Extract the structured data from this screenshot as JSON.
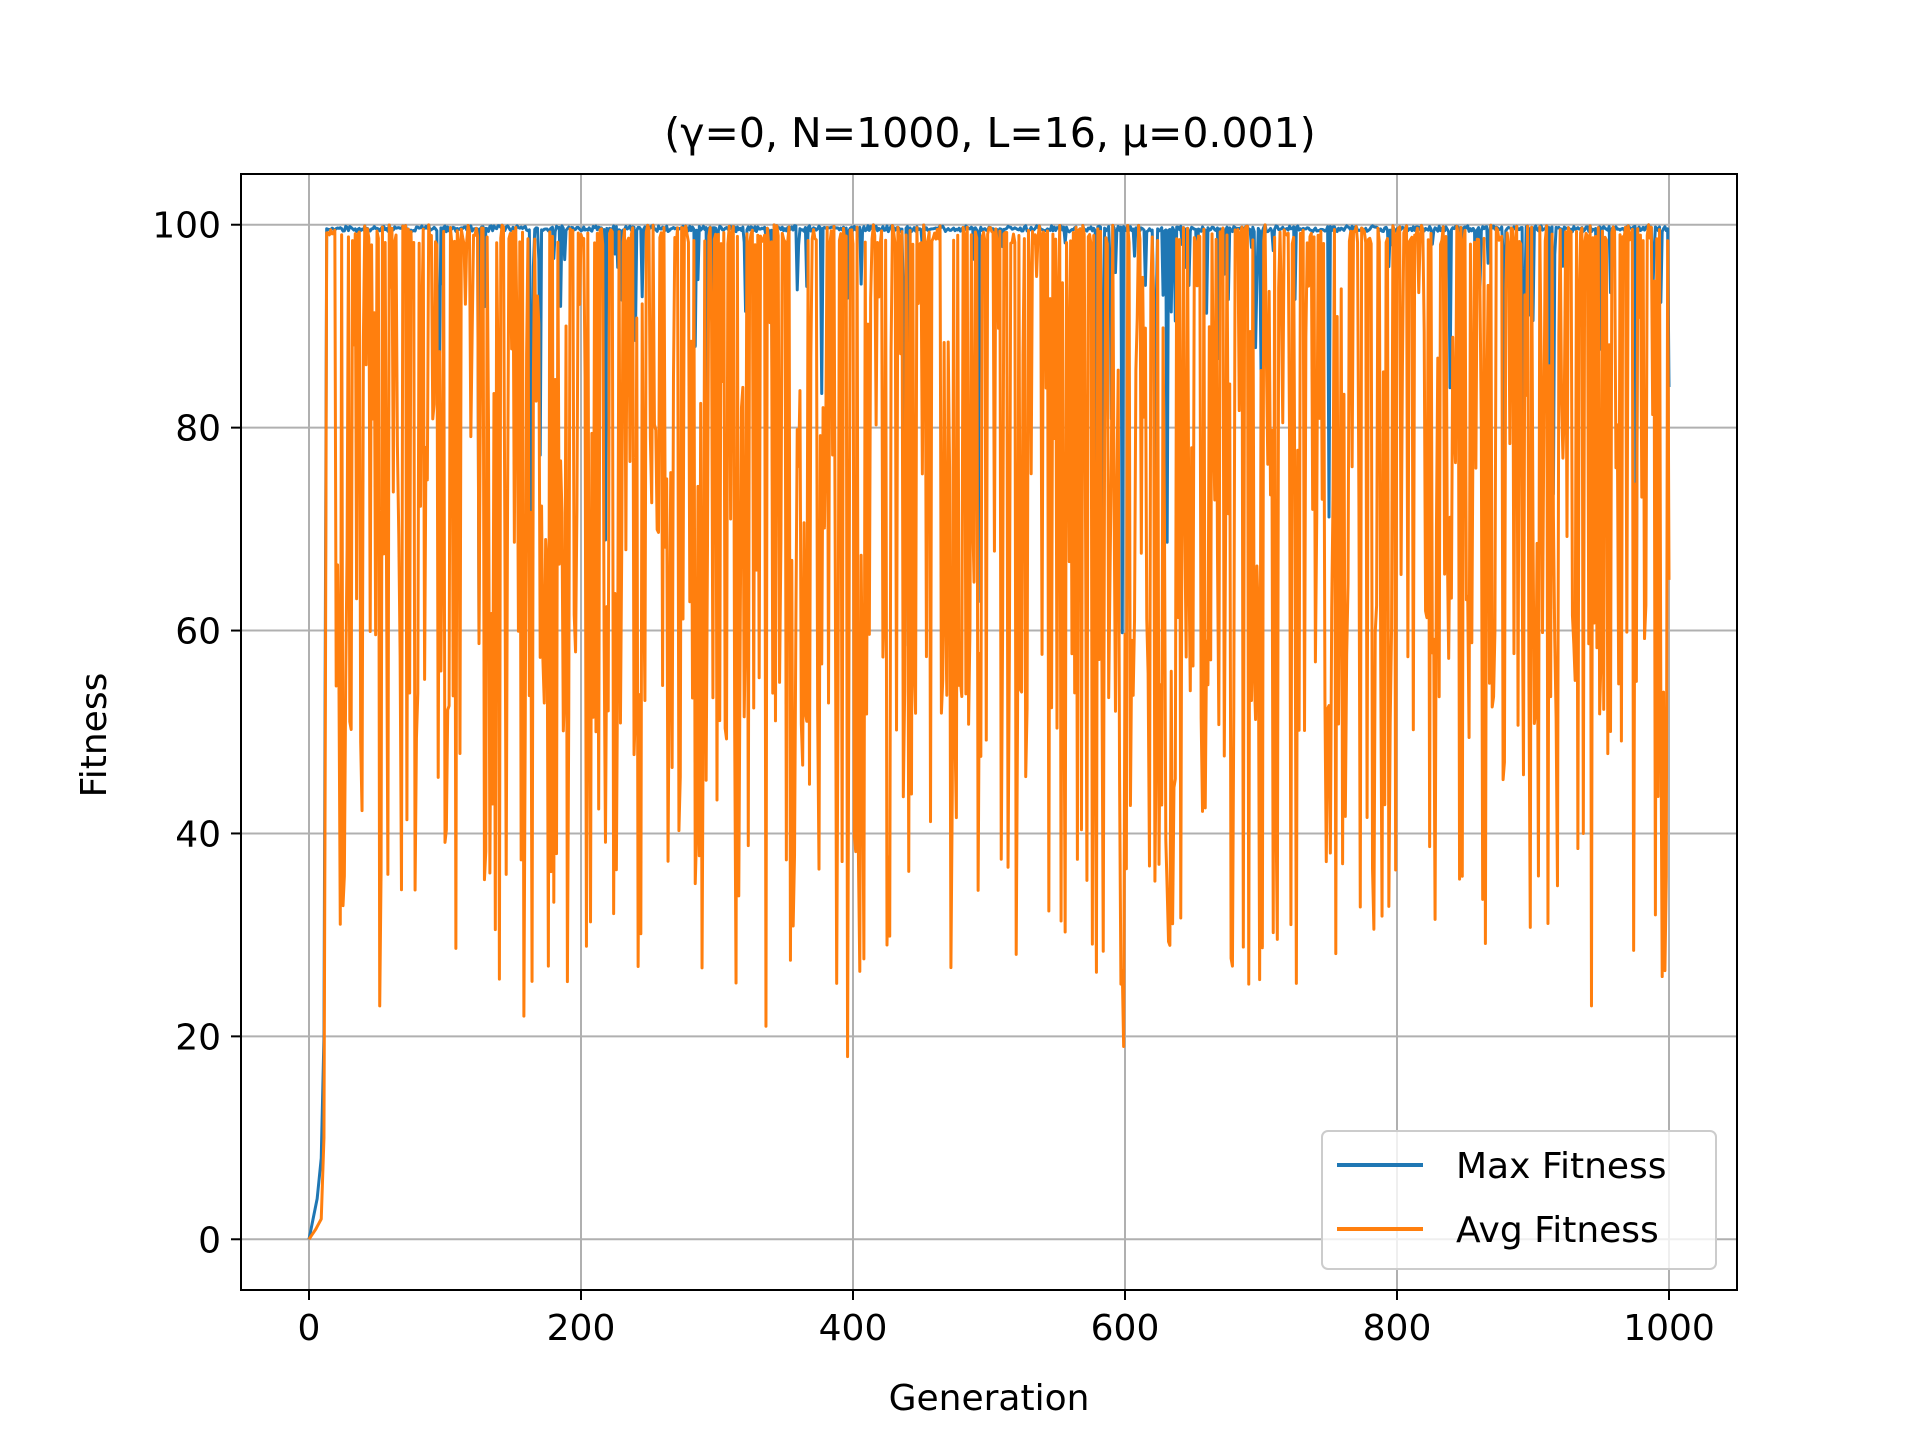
{
  "chart_data": {
    "type": "line",
    "title": "(γ=0, N=1000, L=16, μ=0.001)",
    "xlabel": "Generation",
    "ylabel": "Fitness",
    "xlim": [
      -50,
      1050
    ],
    "ylim": [
      -5,
      105
    ],
    "xticks": [
      0,
      200,
      400,
      600,
      800,
      1000
    ],
    "yticks": [
      0,
      20,
      40,
      60,
      80,
      100
    ],
    "xtick_labels": [
      "0",
      "200",
      "400",
      "600",
      "800",
      "1000"
    ],
    "ytick_labels": [
      "0",
      "20",
      "40",
      "60",
      "80",
      "100"
    ],
    "grid": true,
    "legend_position": "bottom-right",
    "generations": 1000,
    "series": [
      {
        "name": "Max Fitness",
        "color": "#1f77b4",
        "description_values": {
          "start": 0,
          "ramp": [
            [
              0,
              0
            ],
            [
              3,
              2
            ],
            [
              6,
              4
            ],
            [
              9,
              8
            ],
            [
              11,
              20
            ],
            [
              12,
              60
            ],
            [
              13,
              99.6
            ]
          ],
          "plateau": 99.7,
          "dip_range": [
            53,
            99
          ],
          "end": 84
        }
      },
      {
        "name": "Avg Fitness",
        "color": "#ff7f0e",
        "description_values": {
          "start": 0,
          "ramp": [
            [
              0,
              0
            ],
            [
              5,
              1
            ],
            [
              9,
              2
            ],
            [
              11,
              10
            ],
            [
              12,
              50
            ],
            [
              13,
              99.2
            ]
          ],
          "min_observed": 18,
          "oscillation_range": [
            18,
            100
          ],
          "notable_minima": [
            [
              52,
              23
            ],
            [
              158,
              22
            ],
            [
              336,
              21
            ],
            [
              396,
              18
            ],
            [
              599,
              19
            ],
            [
              943,
              23
            ]
          ],
          "end": 65
        }
      }
    ]
  }
}
